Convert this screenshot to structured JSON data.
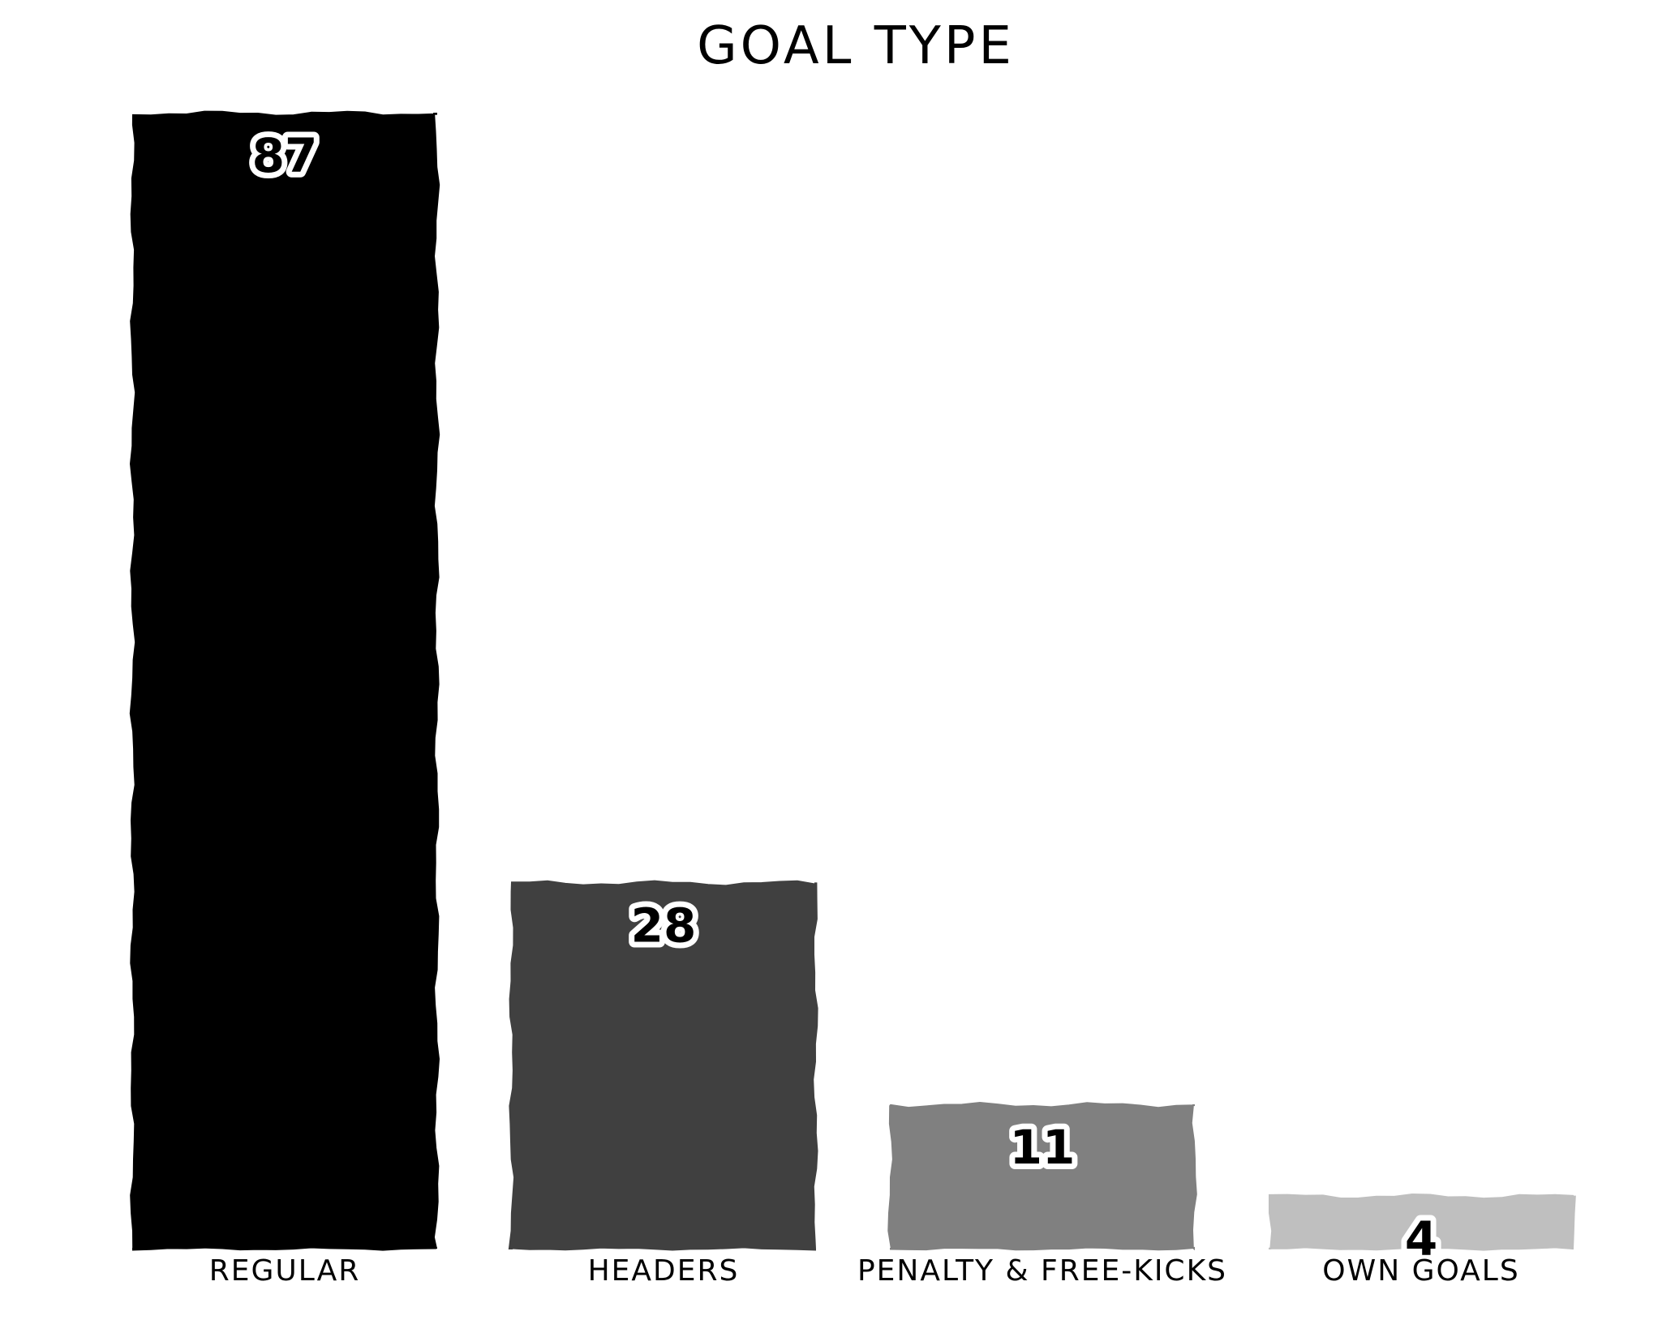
{
  "chart_data": {
    "type": "bar",
    "title": "GOAL TYPE",
    "xlabel": "",
    "ylabel": "",
    "categories": [
      "REGULAR",
      "HEADERS",
      "PENALTY & FREE-KICKS",
      "OWN GOALS"
    ],
    "values": [
      87,
      28,
      11,
      4
    ],
    "data_labels": [
      "87",
      "28",
      "11",
      "4"
    ],
    "colors": [
      "#000000",
      "#404040",
      "#808080",
      "#bfbfbf"
    ],
    "ylim": [
      0,
      87
    ],
    "grid": false,
    "legend": "none"
  }
}
